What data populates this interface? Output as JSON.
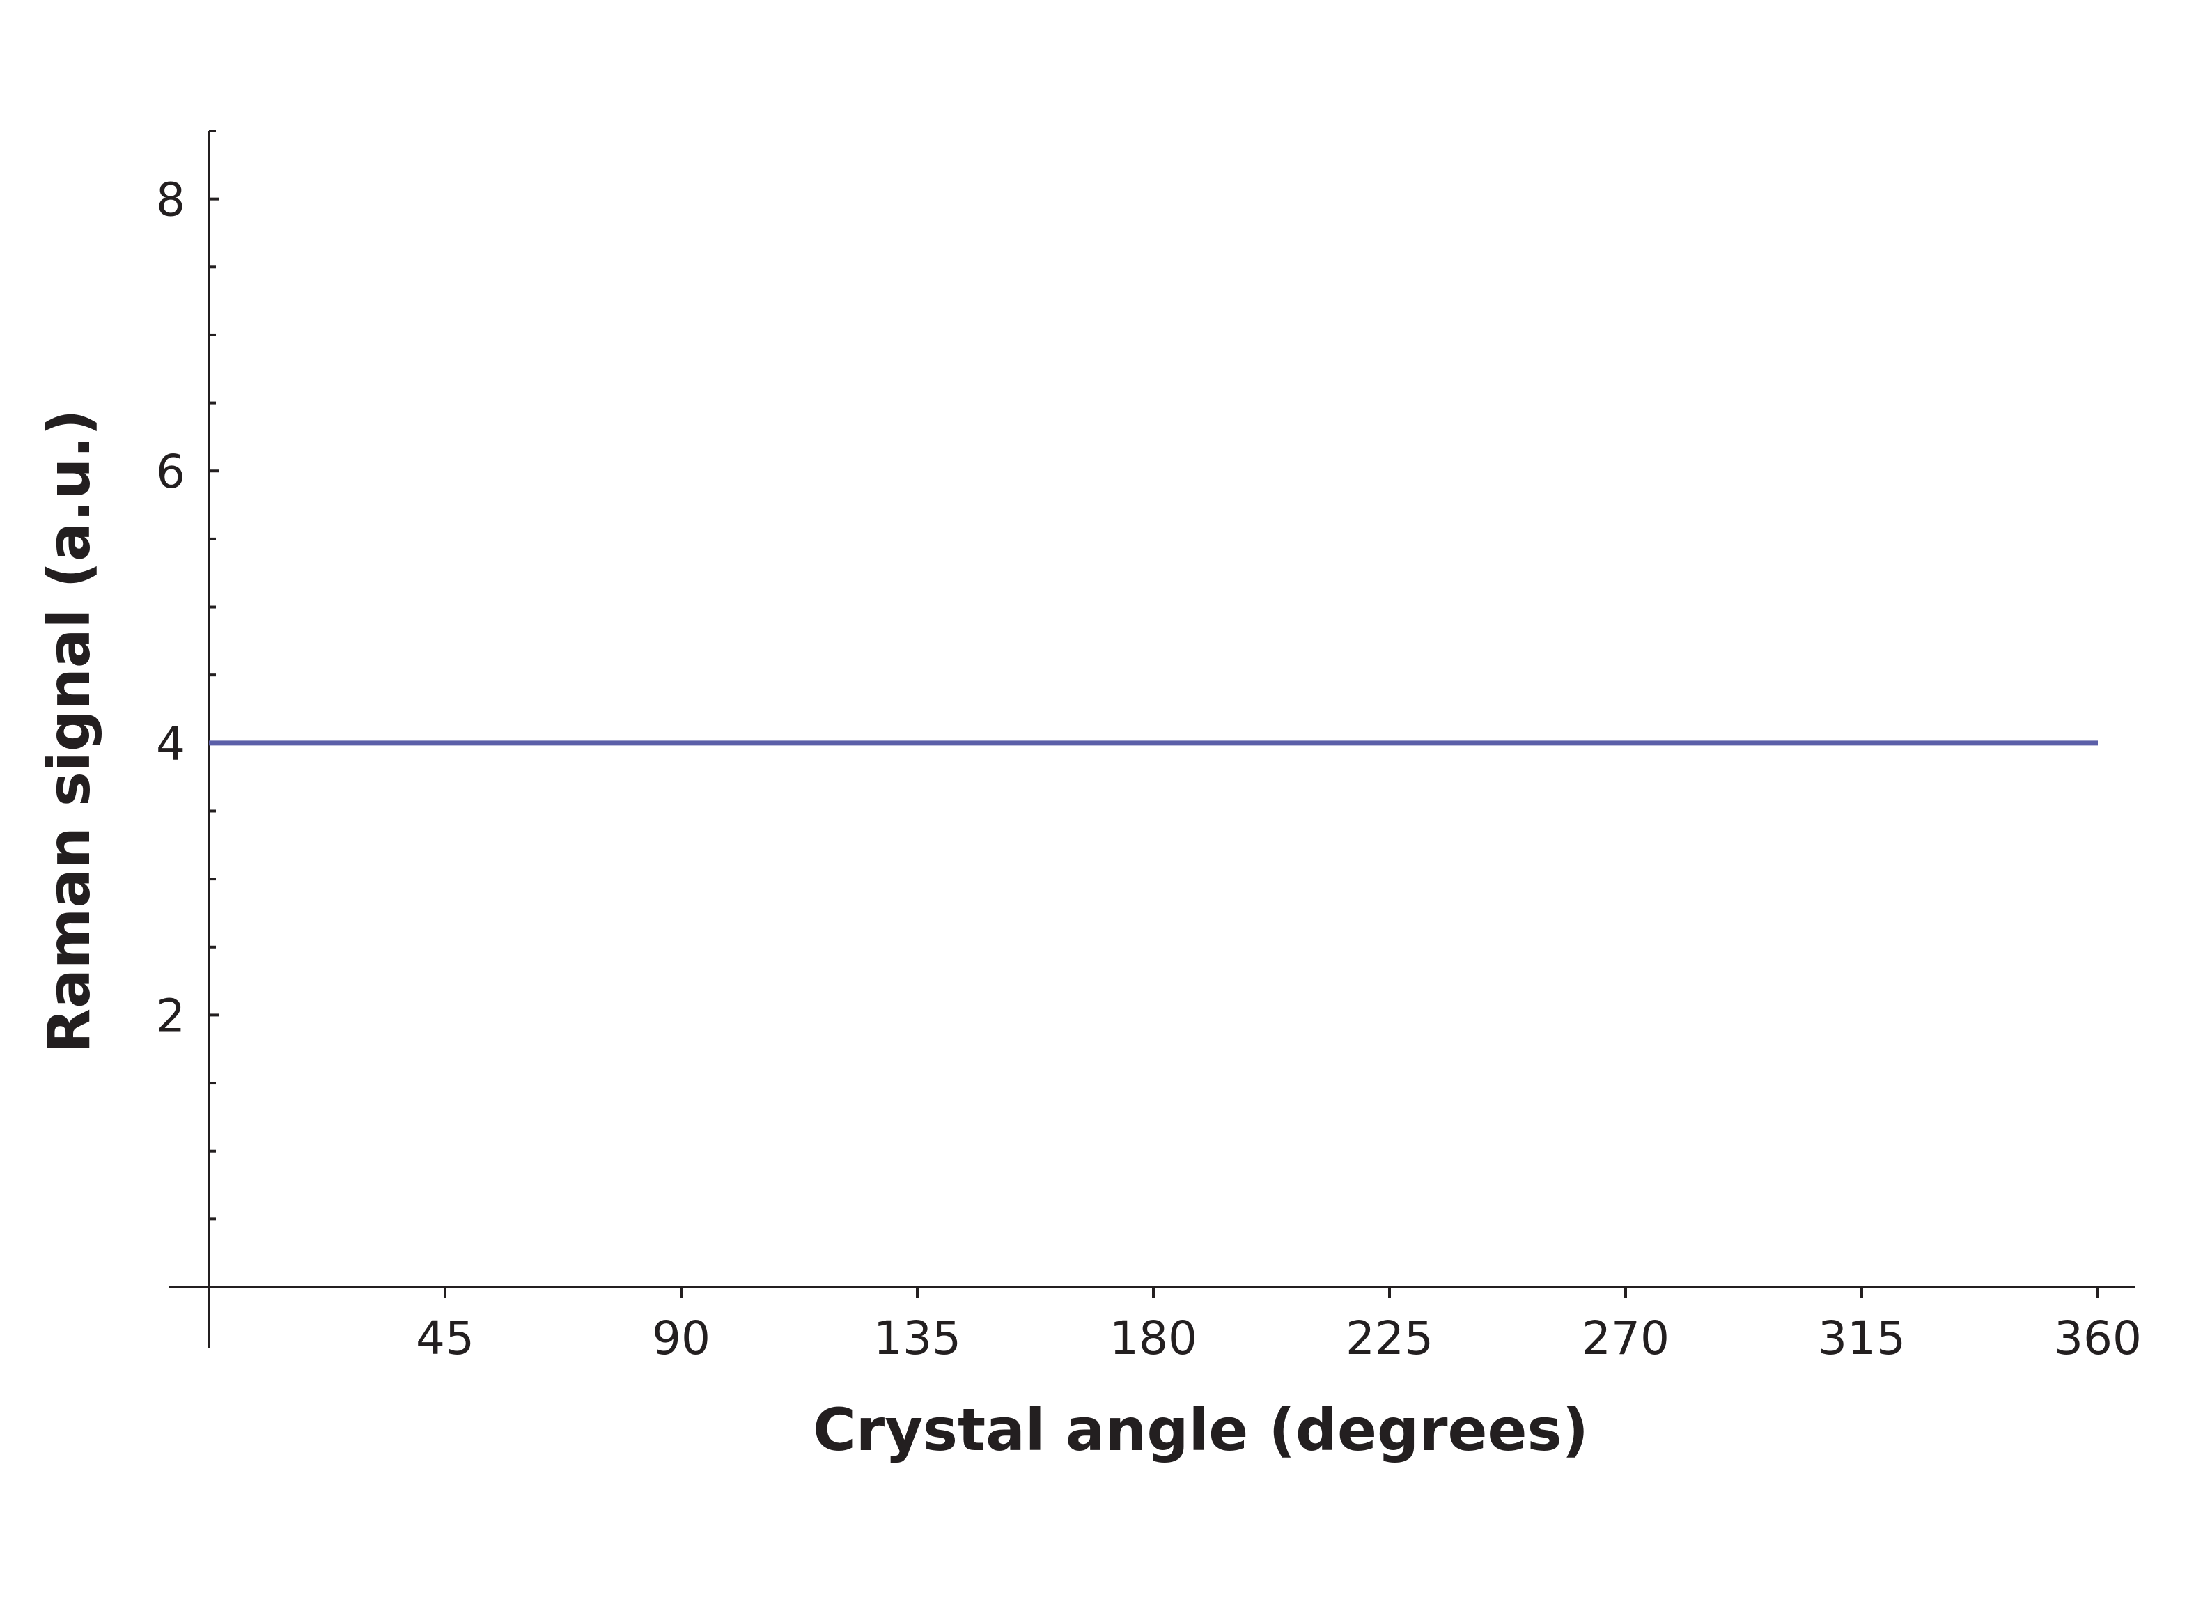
{
  "chart_data": {
    "type": "line",
    "title": "",
    "xlabel": "Crystal angle (degrees)",
    "ylabel": "Raman signal (a.u.)",
    "xlim": [
      0,
      360
    ],
    "ylim": [
      0,
      8.5
    ],
    "x_ticks": [
      {
        "value": 45,
        "label": "45"
      },
      {
        "value": 90,
        "label": "90"
      },
      {
        "value": 135,
        "label": "135"
      },
      {
        "value": 180,
        "label": "180"
      },
      {
        "value": 225,
        "label": "225"
      },
      {
        "value": 270,
        "label": "270"
      },
      {
        "value": 315,
        "label": "315"
      },
      {
        "value": 360,
        "label": "360"
      }
    ],
    "y_ticks": [
      {
        "value": 2,
        "label": "2"
      },
      {
        "value": 4,
        "label": "4"
      },
      {
        "value": 6,
        "label": "6"
      },
      {
        "value": 8,
        "label": "8"
      }
    ],
    "y_minor_step": 0.5,
    "grid": false,
    "series": [
      {
        "color": "#5b5fa8",
        "x": [
          0,
          360
        ],
        "y": [
          4,
          4
        ]
      }
    ]
  }
}
